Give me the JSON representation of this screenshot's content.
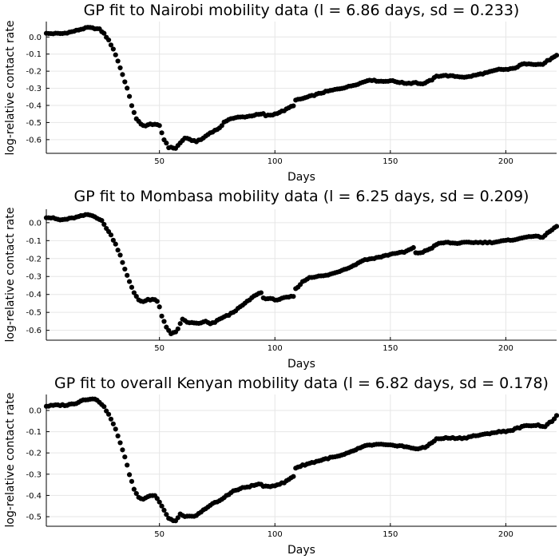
{
  "chart_data": [
    {
      "type": "scatter",
      "title": "GP fit to Nairobi mobility data (l = 6.86 days, sd = 0.233)",
      "xlabel": "Days",
      "ylabel": "log-relative contact rate",
      "xlim": [
        1,
        222
      ],
      "ylim": [
        -0.68,
        0.09
      ],
      "xticks": [
        50,
        100,
        150,
        200
      ],
      "yticks": [
        0.0,
        -0.1,
        -0.2,
        -0.3,
        -0.4,
        -0.5,
        -0.6
      ],
      "ytick_labels": [
        "0.0",
        "-0.1",
        "-0.2",
        "-0.3",
        "-0.4",
        "-0.5",
        "-0.6"
      ],
      "grid": true,
      "series": [
        {
          "name": "Nairobi",
          "anchors": [
            [
              1,
              0.02
            ],
            [
              5,
              0.02
            ],
            [
              8,
              0.02
            ],
            [
              12,
              0.03
            ],
            [
              16,
              0.045
            ],
            [
              19,
              0.055
            ],
            [
              22,
              0.05
            ],
            [
              24,
              0.045
            ],
            [
              26,
              0.02
            ],
            [
              28,
              -0.02
            ],
            [
              30,
              -0.07
            ],
            [
              32,
              -0.14
            ],
            [
              34,
              -0.22
            ],
            [
              36,
              -0.3
            ],
            [
              38,
              -0.4
            ],
            [
              40,
              -0.48
            ],
            [
              42,
              -0.51
            ],
            [
              44,
              -0.52
            ],
            [
              46,
              -0.51
            ],
            [
              48,
              -0.51
            ],
            [
              50,
              -0.52
            ],
            [
              51,
              -0.56
            ],
            [
              52,
              -0.6
            ],
            [
              53,
              -0.62
            ],
            [
              54,
              -0.645
            ],
            [
              57,
              -0.65
            ],
            [
              59,
              -0.62
            ],
            [
              61,
              -0.59
            ],
            [
              63,
              -0.6
            ],
            [
              66,
              -0.61
            ],
            [
              68,
              -0.6
            ],
            [
              70,
              -0.58
            ],
            [
              72,
              -0.56
            ],
            [
              75,
              -0.54
            ],
            [
              77,
              -0.52
            ],
            [
              78,
              -0.5
            ],
            [
              80,
              -0.48
            ],
            [
              84,
              -0.47
            ],
            [
              88,
              -0.465
            ],
            [
              92,
              -0.455
            ],
            [
              95,
              -0.45
            ],
            [
              96,
              -0.46
            ],
            [
              99,
              -0.455
            ],
            [
              104,
              -0.43
            ],
            [
              108,
              -0.4
            ],
            [
              109,
              -0.37
            ],
            [
              112,
              -0.36
            ],
            [
              117,
              -0.34
            ],
            [
              122,
              -0.32
            ],
            [
              127,
              -0.305
            ],
            [
              132,
              -0.29
            ],
            [
              137,
              -0.27
            ],
            [
              141,
              -0.25
            ],
            [
              143,
              -0.255
            ],
            [
              147,
              -0.26
            ],
            [
              150,
              -0.255
            ],
            [
              152,
              -0.26
            ],
            [
              156,
              -0.27
            ],
            [
              159,
              -0.27
            ],
            [
              161,
              -0.265
            ],
            [
              163,
              -0.275
            ],
            [
              165,
              -0.27
            ],
            [
              168,
              -0.25
            ],
            [
              170,
              -0.23
            ],
            [
              173,
              -0.225
            ],
            [
              178,
              -0.23
            ],
            [
              183,
              -0.235
            ],
            [
              188,
              -0.22
            ],
            [
              193,
              -0.205
            ],
            [
              197,
              -0.19
            ],
            [
              201,
              -0.19
            ],
            [
              203,
              -0.185
            ],
            [
              205,
              -0.175
            ],
            [
              207,
              -0.16
            ],
            [
              210,
              -0.155
            ],
            [
              213,
              -0.16
            ],
            [
              216,
              -0.16
            ],
            [
              218,
              -0.14
            ],
            [
              222,
              -0.11
            ]
          ]
        }
      ]
    },
    {
      "type": "scatter",
      "title": "GP fit to Mombasa mobility data (l = 6.25 days, sd = 0.209)",
      "xlabel": "Days",
      "ylabel": "log-relative contact rate",
      "xlim": [
        1,
        222
      ],
      "ylim": [
        -0.655,
        0.075
      ],
      "xticks": [
        50,
        100,
        150,
        200
      ],
      "yticks": [
        0.0,
        -0.1,
        -0.2,
        -0.3,
        -0.4,
        -0.5,
        -0.6
      ],
      "ytick_labels": [
        "0.0",
        "-0.1",
        "-0.2",
        "-0.3",
        "-0.4",
        "-0.5",
        "-0.6"
      ],
      "grid": true,
      "series": [
        {
          "name": "Mombasa",
          "anchors": [
            [
              1,
              0.03
            ],
            [
              4,
              0.025
            ],
            [
              7,
              0.015
            ],
            [
              10,
              0.02
            ],
            [
              14,
              0.03
            ],
            [
              17,
              0.04
            ],
            [
              19,
              0.045
            ],
            [
              22,
              0.035
            ],
            [
              25,
              0.01
            ],
            [
              27,
              -0.03
            ],
            [
              29,
              -0.07
            ],
            [
              31,
              -0.12
            ],
            [
              33,
              -0.18
            ],
            [
              35,
              -0.26
            ],
            [
              37,
              -0.33
            ],
            [
              39,
              -0.39
            ],
            [
              41,
              -0.43
            ],
            [
              43,
              -0.44
            ],
            [
              45,
              -0.43
            ],
            [
              48,
              -0.43
            ],
            [
              49,
              -0.44
            ],
            [
              50,
              -0.47
            ],
            [
              51,
              -0.52
            ],
            [
              53,
              -0.58
            ],
            [
              55,
              -0.62
            ],
            [
              57,
              -0.61
            ],
            [
              58,
              -0.59
            ],
            [
              60,
              -0.54
            ],
            [
              62,
              -0.555
            ],
            [
              65,
              -0.56
            ],
            [
              68,
              -0.56
            ],
            [
              70,
              -0.55
            ],
            [
              72,
              -0.565
            ],
            [
              74,
              -0.555
            ],
            [
              77,
              -0.53
            ],
            [
              80,
              -0.515
            ],
            [
              84,
              -0.48
            ],
            [
              88,
              -0.44
            ],
            [
              92,
              -0.4
            ],
            [
              94,
              -0.39
            ],
            [
              95,
              -0.42
            ],
            [
              98,
              -0.425
            ],
            [
              101,
              -0.43
            ],
            [
              104,
              -0.42
            ],
            [
              108,
              -0.41
            ],
            [
              109,
              -0.37
            ],
            [
              112,
              -0.33
            ],
            [
              115,
              -0.305
            ],
            [
              118,
              -0.3
            ],
            [
              122,
              -0.295
            ],
            [
              126,
              -0.28
            ],
            [
              130,
              -0.26
            ],
            [
              134,
              -0.24
            ],
            [
              138,
              -0.21
            ],
            [
              142,
              -0.2
            ],
            [
              146,
              -0.19
            ],
            [
              149,
              -0.18
            ],
            [
              152,
              -0.17
            ],
            [
              156,
              -0.165
            ],
            [
              160,
              -0.14
            ],
            [
              161,
              -0.17
            ],
            [
              164,
              -0.165
            ],
            [
              168,
              -0.14
            ],
            [
              170,
              -0.12
            ],
            [
              174,
              -0.11
            ],
            [
              178,
              -0.115
            ],
            [
              184,
              -0.11
            ],
            [
              190,
              -0.11
            ],
            [
              194,
              -0.11
            ],
            [
              200,
              -0.1
            ],
            [
              206,
              -0.09
            ],
            [
              210,
              -0.075
            ],
            [
              216,
              -0.08
            ],
            [
              218,
              -0.06
            ],
            [
              222,
              -0.02
            ]
          ]
        }
      ]
    },
    {
      "type": "scatter",
      "title": "GP fit to overall Kenyan mobility data (l = 6.82 days, sd = 0.178)",
      "xlabel": "Days",
      "ylabel": "log-relative contact rate",
      "xlim": [
        1,
        222
      ],
      "ylim": [
        -0.545,
        0.075
      ],
      "xticks": [
        50,
        100,
        150,
        200
      ],
      "yticks": [
        0.0,
        -0.1,
        -0.2,
        -0.3,
        -0.4,
        -0.5
      ],
      "ytick_labels": [
        "0.0",
        "-0.1",
        "-0.2",
        "-0.3",
        "-0.4",
        "-0.5"
      ],
      "grid": true,
      "series": [
        {
          "name": "Kenya",
          "anchors": [
            [
              1,
              0.02
            ],
            [
              6,
              0.025
            ],
            [
              10,
              0.025
            ],
            [
              14,
              0.035
            ],
            [
              17,
              0.05
            ],
            [
              20,
              0.055
            ],
            [
              23,
              0.05
            ],
            [
              25,
              0.03
            ],
            [
              27,
              0.0
            ],
            [
              29,
              -0.04
            ],
            [
              31,
              -0.09
            ],
            [
              33,
              -0.15
            ],
            [
              35,
              -0.22
            ],
            [
              37,
              -0.3
            ],
            [
              39,
              -0.37
            ],
            [
              41,
              -0.41
            ],
            [
              43,
              -0.415
            ],
            [
              46,
              -0.4
            ],
            [
              48,
              -0.4
            ],
            [
              50,
              -0.43
            ],
            [
              52,
              -0.47
            ],
            [
              54,
              -0.51
            ],
            [
              57,
              -0.52
            ],
            [
              59,
              -0.49
            ],
            [
              62,
              -0.5
            ],
            [
              65,
              -0.5
            ],
            [
              68,
              -0.48
            ],
            [
              70,
              -0.46
            ],
            [
              73,
              -0.44
            ],
            [
              77,
              -0.42
            ],
            [
              79,
              -0.4
            ],
            [
              82,
              -0.38
            ],
            [
              86,
              -0.365
            ],
            [
              90,
              -0.355
            ],
            [
              94,
              -0.345
            ],
            [
              95,
              -0.36
            ],
            [
              99,
              -0.355
            ],
            [
              104,
              -0.34
            ],
            [
              108,
              -0.31
            ],
            [
              109,
              -0.27
            ],
            [
              113,
              -0.255
            ],
            [
              118,
              -0.24
            ],
            [
              123,
              -0.225
            ],
            [
              128,
              -0.215
            ],
            [
              132,
              -0.2
            ],
            [
              136,
              -0.18
            ],
            [
              140,
              -0.165
            ],
            [
              145,
              -0.16
            ],
            [
              150,
              -0.165
            ],
            [
              154,
              -0.165
            ],
            [
              158,
              -0.175
            ],
            [
              162,
              -0.18
            ],
            [
              165,
              -0.175
            ],
            [
              168,
              -0.15
            ],
            [
              170,
              -0.135
            ],
            [
              174,
              -0.13
            ],
            [
              178,
              -0.13
            ],
            [
              182,
              -0.13
            ],
            [
              186,
              -0.12
            ],
            [
              190,
              -0.115
            ],
            [
              194,
              -0.105
            ],
            [
              198,
              -0.1
            ],
            [
              202,
              -0.095
            ],
            [
              206,
              -0.08
            ],
            [
              210,
              -0.07
            ],
            [
              214,
              -0.07
            ],
            [
              217,
              -0.075
            ],
            [
              220,
              -0.05
            ],
            [
              222,
              -0.025
            ]
          ]
        }
      ]
    }
  ]
}
